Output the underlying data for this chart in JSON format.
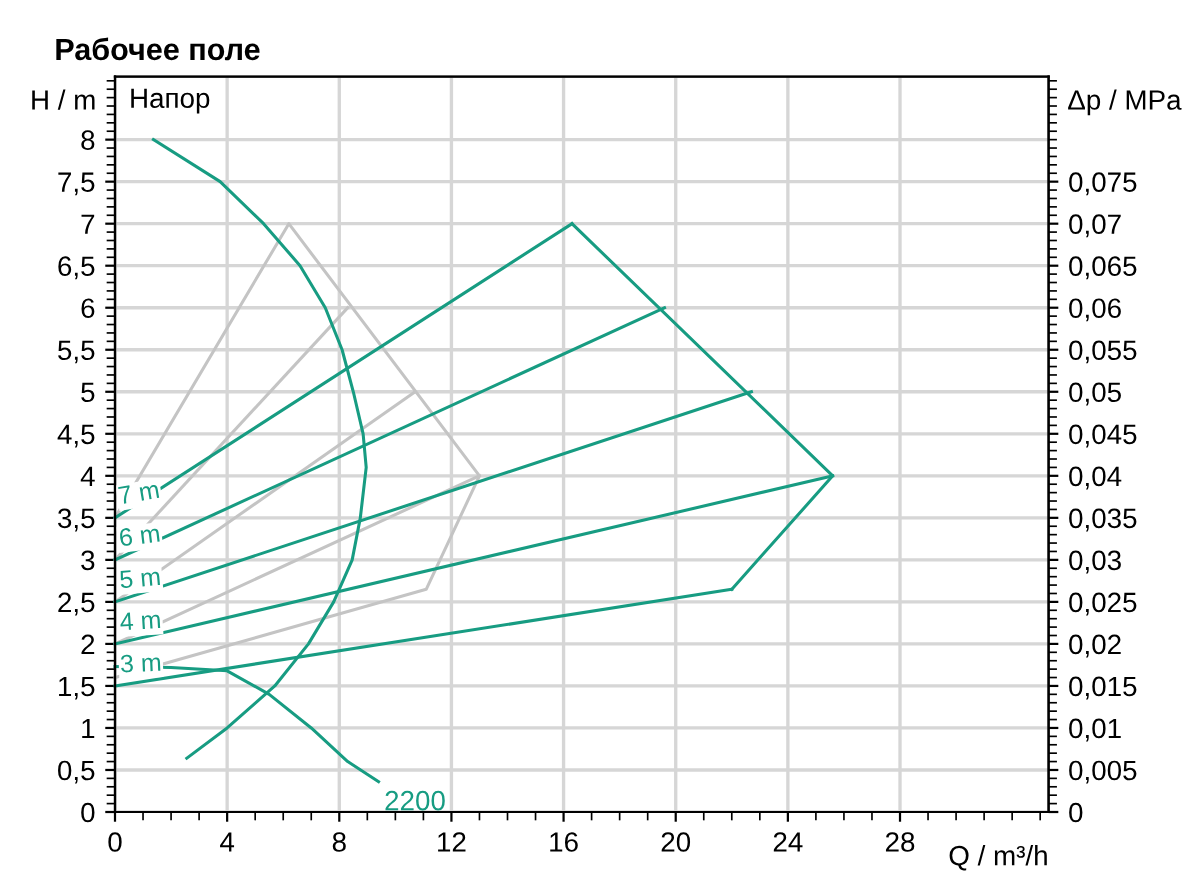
{
  "chart_data": {
    "type": "line",
    "title": "Рабочее поле",
    "xlabel": "Q / m³/h",
    "ylabel": "H / m",
    "y2label": "Δp / MPa",
    "annotations": [
      "Напор",
      "2200"
    ],
    "xlim": [
      0,
      33.3
    ],
    "xticks": [
      0,
      4,
      8,
      12,
      16,
      20,
      24,
      28
    ],
    "ylim": [
      0,
      8.75
    ],
    "yticks": [
      0,
      {
        "value": 0.5,
        "label": "0,5"
      },
      1,
      {
        "value": 1.5,
        "label": "1,5"
      },
      2,
      {
        "value": 2.5,
        "label": "2,5"
      },
      3,
      {
        "value": 3.5,
        "label": "3,5"
      },
      4,
      {
        "value": 4.5,
        "label": "4,5"
      },
      5,
      {
        "value": 5.5,
        "label": "5,5"
      },
      6,
      {
        "value": 6.5,
        "label": "6,5"
      },
      7,
      {
        "value": 7.5,
        "label": "7,5"
      },
      8
    ],
    "y2lim": [
      0,
      0.0875
    ],
    "y2ticks": [
      0,
      {
        "value": 0.005,
        "label": "0,005"
      },
      {
        "value": 0.01,
        "label": "0,01"
      },
      {
        "value": 0.015,
        "label": "0,015"
      },
      {
        "value": 0.02,
        "label": "0,02"
      },
      {
        "value": 0.025,
        "label": "0,025"
      },
      {
        "value": 0.03,
        "label": "0,03"
      },
      {
        "value": 0.035,
        "label": "0,035"
      },
      {
        "value": 0.04,
        "label": "0,04"
      },
      {
        "value": 0.045,
        "label": "0,045"
      },
      {
        "value": 0.05,
        "label": "0,05"
      },
      {
        "value": 0.055,
        "label": "0,055"
      },
      {
        "value": 0.06,
        "label": "0,06"
      },
      {
        "value": 0.065,
        "label": "0,065"
      },
      {
        "value": 0.07,
        "label": "0,07"
      },
      {
        "value": 0.075,
        "label": "0,075"
      }
    ],
    "grid": true,
    "marker": "none",
    "line_style": "solid",
    "series": [
      {
        "color": "#c4c4c4",
        "x": [
          0,
          6.2,
          13,
          11.1,
          0
        ],
        "values": [
          3.5,
          7.0,
          4.0,
          2.65,
          1.6
        ]
      },
      {
        "color": "#c4c4c4",
        "x": [
          0,
          8.3
        ],
        "values": [
          3.0,
          6.0
        ]
      },
      {
        "color": "#c4c4c4",
        "x": [
          0,
          10.7
        ],
        "values": [
          2.5,
          5.0
        ]
      },
      {
        "color": "#c4c4c4",
        "x": [
          0,
          13
        ],
        "values": [
          2.0,
          4.0
        ]
      },
      {
        "name": "7 m",
        "color": "#179c82",
        "x": [
          0,
          16.3
        ],
        "values": [
          3.5,
          7.0
        ]
      },
      {
        "color": "#179c82",
        "x": [
          16.3,
          25.6,
          22
        ],
        "values": [
          7.0,
          4.0,
          2.65
        ]
      },
      {
        "name": "6 m",
        "color": "#179c82",
        "x": [
          0,
          19.6
        ],
        "values": [
          3.0,
          6.0
        ]
      },
      {
        "name": "5 m",
        "color": "#179c82",
        "x": [
          0,
          22.7
        ],
        "values": [
          2.5,
          5.0
        ]
      },
      {
        "name": "4 m",
        "color": "#179c82",
        "x": [
          0,
          25.6
        ],
        "values": [
          2.0,
          4.0
        ]
      },
      {
        "name": "3 m",
        "color": "#179c82",
        "x": [
          0,
          22
        ],
        "values": [
          1.5,
          2.65
        ]
      },
      {
        "color": "#179c82",
        "x": [
          1.37,
          3.75,
          5.3,
          6.6,
          7.5,
          8.1,
          8.5,
          8.85,
          8.96,
          8.75,
          8.46,
          7.8,
          6.9,
          5.7,
          4.0,
          2.56
        ],
        "values": [
          8,
          7.5,
          7,
          6.5,
          6,
          5.5,
          5,
          4.5,
          4.1,
          3.5,
          3,
          2.5,
          2,
          1.5,
          1,
          0.64
        ]
      },
      {
        "color": "#179c82",
        "x": [
          0,
          2,
          4,
          5.5,
          7,
          8.3,
          9.4
        ],
        "values": [
          1.73,
          1.72,
          1.68,
          1.4,
          1.0,
          0.6,
          0.36
        ]
      }
    ]
  }
}
